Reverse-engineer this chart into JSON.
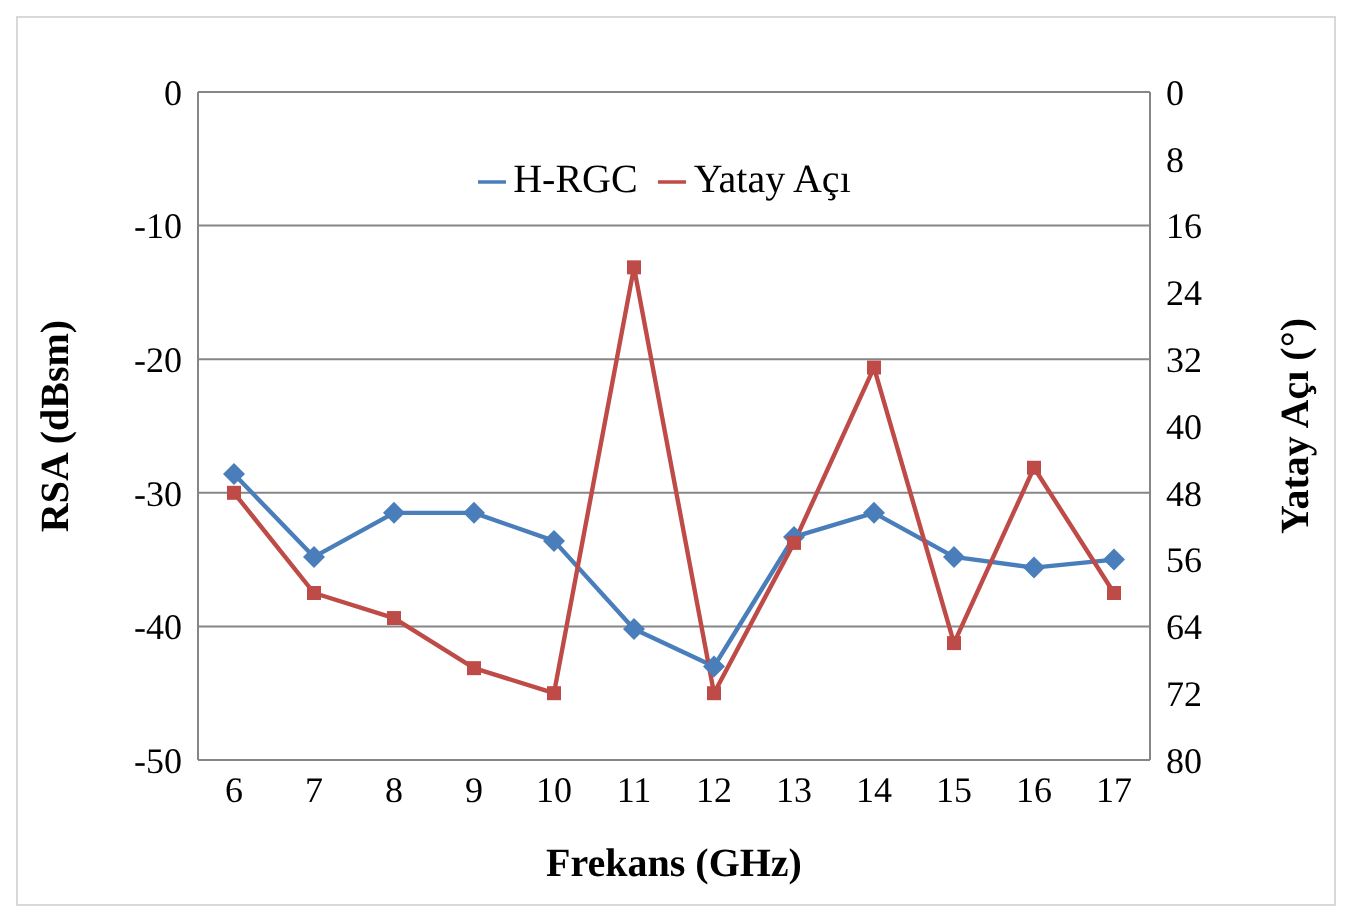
{
  "chart_data": {
    "type": "line",
    "xlabel": "Frekans (GHz)",
    "ylabel": "RSA (dBsm)",
    "y2label": "Yatay Açı (°)",
    "categories": [
      "6",
      "7",
      "8",
      "9",
      "10",
      "11",
      "12",
      "13",
      "14",
      "15",
      "16",
      "17"
    ],
    "series": [
      {
        "name": "H-RGC",
        "color": "#4a7ebb",
        "marker": "diamond",
        "values": [
          -28.6,
          -34.8,
          -31.5,
          -31.5,
          -33.6,
          -40.2,
          -43,
          -33.3,
          -31.5,
          -34.8,
          -35.6,
          -35
        ]
      },
      {
        "name": "Yatay Açı",
        "color": "#be4b48",
        "marker": "square",
        "axis": "y2",
        "values": [
          48,
          60,
          63,
          69,
          72,
          21,
          72,
          54,
          33,
          66,
          45,
          60
        ]
      }
    ],
    "ylim": [
      -50,
      0
    ],
    "yticks": [
      -50,
      -40,
      -30,
      -20,
      -10,
      0
    ],
    "y2lim": [
      80,
      0
    ],
    "y2ticks": [
      0,
      8,
      16,
      24,
      32,
      40,
      48,
      56,
      64,
      72,
      80
    ],
    "grid": "y",
    "legend": "top"
  }
}
